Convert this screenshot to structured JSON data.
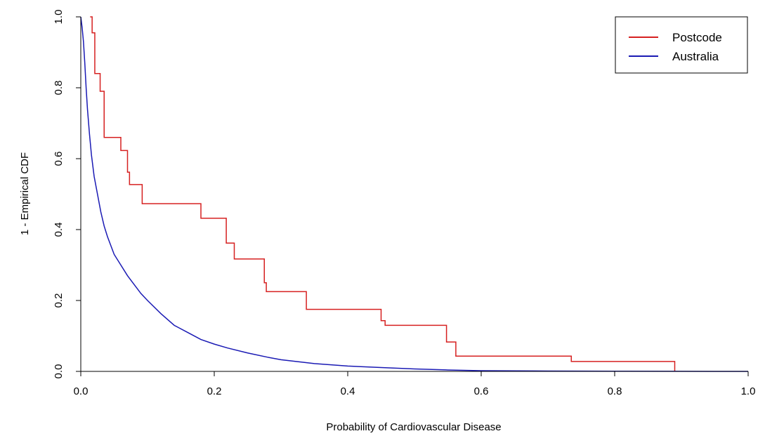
{
  "chart_data": {
    "type": "line",
    "title": "",
    "xlabel": "Probability of Cardiovascular Disease",
    "ylabel": "1 - Empirical CDF",
    "xlim": [
      0,
      1
    ],
    "ylim": [
      0,
      1
    ],
    "x_ticks": [
      "0.0",
      "0.2",
      "0.4",
      "0.6",
      "0.8",
      "1.0"
    ],
    "y_ticks": [
      "0.0",
      "0.2",
      "0.4",
      "0.6",
      "0.8",
      "1.0"
    ],
    "legend_position": "top-right",
    "series": [
      {
        "name": "Postcode",
        "color": "#d62020",
        "style": "step",
        "x": [
          0.014,
          0.017,
          0.021,
          0.029,
          0.035,
          0.06,
          0.07,
          0.073,
          0.075,
          0.092,
          0.18,
          0.218,
          0.23,
          0.275,
          0.278,
          0.338,
          0.45,
          0.456,
          0.465,
          0.548,
          0.562,
          0.735,
          0.89
        ],
        "y": [
          1.0,
          0.955,
          0.84,
          0.79,
          0.66,
          0.623,
          0.562,
          0.527,
          0.527,
          0.473,
          0.432,
          0.362,
          0.317,
          0.25,
          0.225,
          0.175,
          0.143,
          0.13,
          0.13,
          0.083,
          0.043,
          0.028,
          0.0
        ]
      },
      {
        "name": "Australia",
        "color": "#1a1ab4",
        "style": "line",
        "x": [
          0.0,
          0.002,
          0.004,
          0.006,
          0.008,
          0.01,
          0.013,
          0.016,
          0.02,
          0.025,
          0.03,
          0.035,
          0.04,
          0.05,
          0.06,
          0.07,
          0.08,
          0.09,
          0.1,
          0.12,
          0.14,
          0.16,
          0.18,
          0.2,
          0.22,
          0.25,
          0.28,
          0.3,
          0.35,
          0.4,
          0.45,
          0.5,
          0.55,
          0.6,
          0.7,
          0.8,
          0.9,
          0.95,
          1.0
        ],
        "y": [
          1.0,
          0.97,
          0.93,
          0.87,
          0.8,
          0.74,
          0.67,
          0.61,
          0.55,
          0.5,
          0.45,
          0.41,
          0.38,
          0.33,
          0.3,
          0.27,
          0.245,
          0.22,
          0.2,
          0.163,
          0.13,
          0.11,
          0.09,
          0.077,
          0.066,
          0.052,
          0.04,
          0.033,
          0.022,
          0.015,
          0.011,
          0.007,
          0.004,
          0.002,
          0.001,
          0.0005,
          0.0002,
          0.0,
          0.0
        ]
      }
    ]
  }
}
